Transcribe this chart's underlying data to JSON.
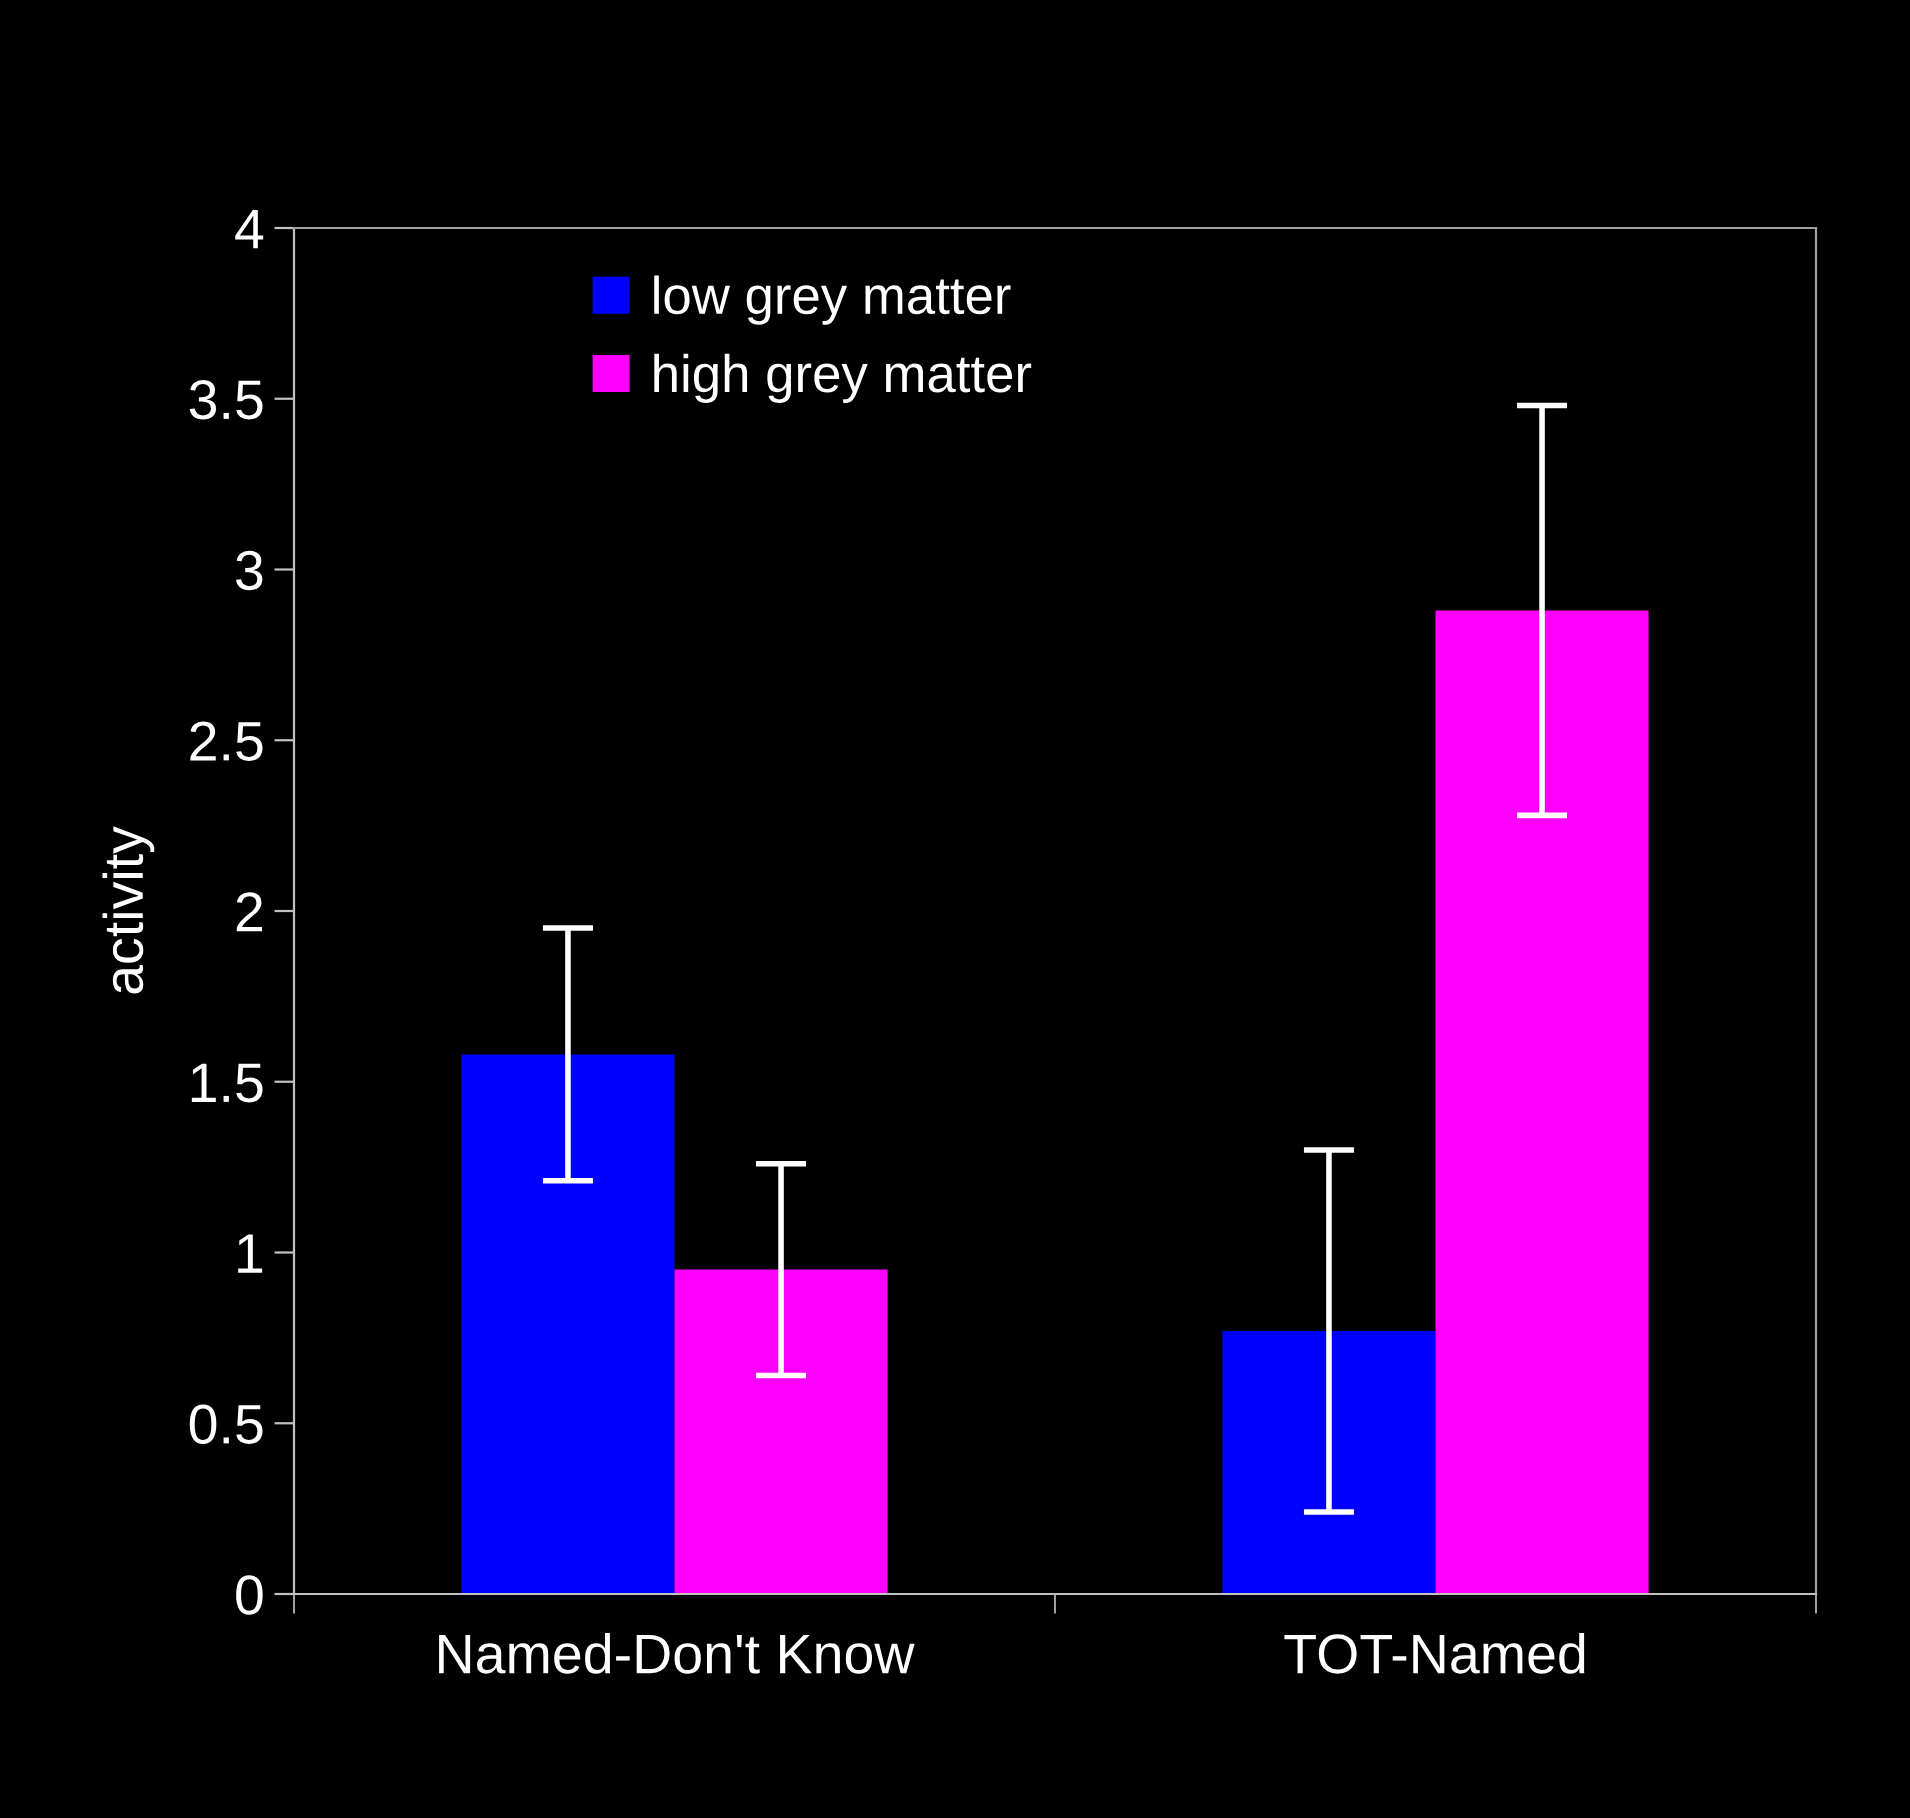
{
  "chart_data": {
    "type": "bar",
    "ylabel": "activity",
    "categories": [
      "Named-Don't Know",
      "TOT-Named"
    ],
    "series": [
      {
        "name": "low grey matter",
        "color": "#0000ff",
        "values": [
          1.58,
          0.77
        ],
        "errors": [
          0.37,
          0.53
        ]
      },
      {
        "name": "high grey matter",
        "color": "#ff00ff",
        "values": [
          0.95,
          2.88
        ],
        "errors": [
          0.31,
          0.6
        ]
      }
    ],
    "ylim": [
      0,
      4
    ],
    "yticks": [
      0,
      0.5,
      1,
      1.5,
      2,
      2.5,
      3,
      3.5,
      4
    ],
    "grid": false,
    "legend": "top left"
  }
}
